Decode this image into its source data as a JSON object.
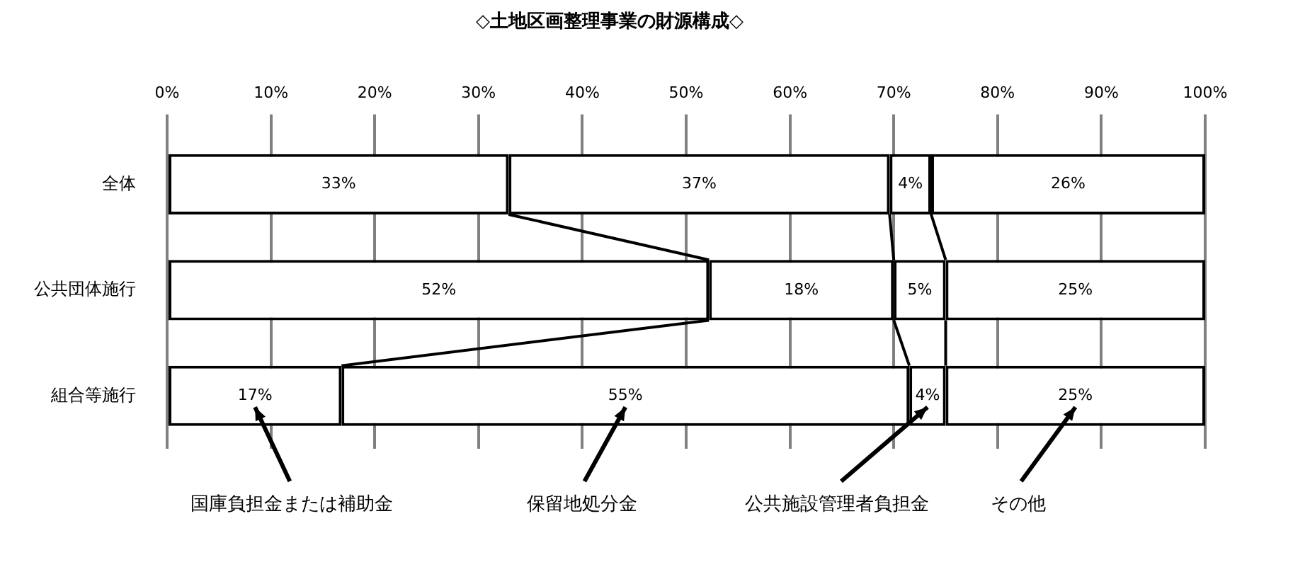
{
  "chart_data": {
    "type": "bar",
    "orientation": "horizontal",
    "stacked": true,
    "title": "◇土地区画整理事業の財源構成◇",
    "categories": [
      "全体",
      "公共団体施行",
      "組合等施行"
    ],
    "series": [
      {
        "name": "国庫負担金または補助金",
        "color": "#ffffff",
        "values": [
          32.9,
          52.2,
          16.8
        ],
        "value_labels": [
          "33%",
          "52%",
          "17%"
        ]
      },
      {
        "name": "保留地処分金",
        "color": "#ffffff",
        "values": [
          36.7,
          17.8,
          54.7
        ],
        "value_labels": [
          "37%",
          "18%",
          "55%"
        ]
      },
      {
        "name": "公共施設管理者負担金",
        "color": "#ffffff",
        "values": [
          4.0,
          5.0,
          3.5
        ],
        "value_labels": [
          "4%",
          "5%",
          "4%"
        ]
      },
      {
        "name": "その他",
        "color": "#ffffff",
        "values": [
          26.4,
          25.0,
          25.0
        ],
        "value_labels": [
          "26%",
          "25%",
          "25%"
        ]
      }
    ],
    "xlim": [
      0,
      100
    ],
    "xticks": [
      {
        "value": 0,
        "label": "0%"
      },
      {
        "value": 10,
        "label": "10%"
      },
      {
        "value": 20,
        "label": "20%"
      },
      {
        "value": 30,
        "label": "30%"
      },
      {
        "value": 40,
        "label": "40%"
      },
      {
        "value": 50,
        "label": "50%"
      },
      {
        "value": 60,
        "label": "60%"
      },
      {
        "value": 70,
        "label": "70%"
      },
      {
        "value": 80,
        "label": "80%"
      },
      {
        "value": 90,
        "label": "90%"
      },
      {
        "value": 100,
        "label": "100%"
      }
    ],
    "grid": "x",
    "legend": false
  }
}
